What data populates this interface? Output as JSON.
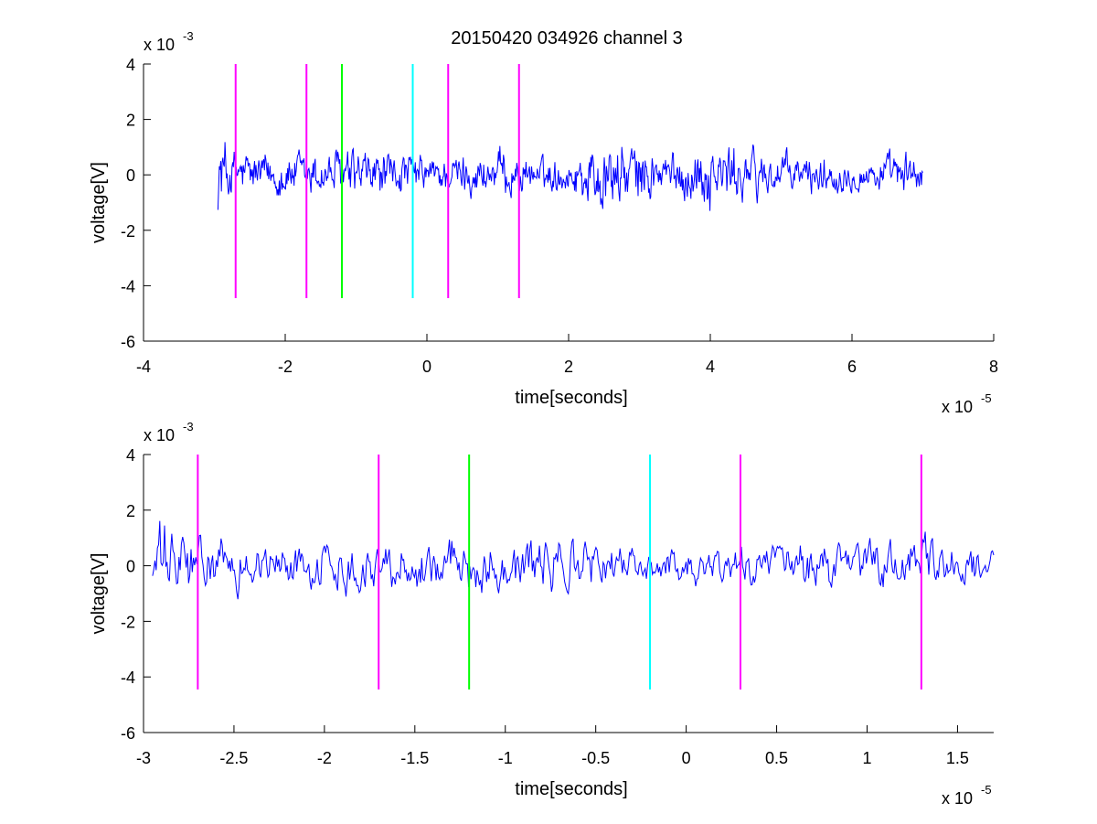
{
  "figure": {
    "title": "20150420 034926 channel 3"
  },
  "chart_data": [
    {
      "type": "line",
      "title": "20150420 034926 channel 3",
      "xlabel": "time[seconds]",
      "ylabel": "voltage[V]",
      "x_multiplier": "x 10",
      "x_exponent": "-5",
      "y_multiplier": "x 10",
      "y_exponent": "-3",
      "xlim": [
        -4,
        8
      ],
      "ylim": [
        -6,
        4
      ],
      "xticks": [
        -4,
        -2,
        0,
        2,
        4,
        6,
        8
      ],
      "xtick_labels": [
        "-4",
        "-2",
        "0",
        "2",
        "4",
        "6",
        "8"
      ],
      "yticks": [
        -6,
        -4,
        -2,
        0,
        2,
        4
      ],
      "ytick_labels": [
        "-6",
        "-4",
        "-2",
        "0",
        "2",
        "4"
      ],
      "grid": false,
      "signal": {
        "color": "#0000ff",
        "x_start": -2.95,
        "x_end": 7.0,
        "samples": 1000,
        "envelope": [
          [
            -2.95,
            2.3
          ],
          [
            -2.9,
            2.6
          ],
          [
            -2.8,
            1.6
          ],
          [
            -2.5,
            1.3
          ],
          [
            -2.0,
            1.3
          ],
          [
            -1.5,
            1.3
          ],
          [
            -1.2,
            1.5
          ],
          [
            -0.5,
            1.3
          ],
          [
            0.0,
            1.0
          ],
          [
            0.5,
            1.1
          ],
          [
            1.0,
            1.4
          ],
          [
            1.5,
            0.9
          ],
          [
            2.0,
            1.0
          ],
          [
            2.5,
            2.2
          ],
          [
            3.0,
            1.7
          ],
          [
            3.5,
            1.2
          ],
          [
            4.0,
            1.9
          ],
          [
            4.5,
            1.6
          ],
          [
            5.0,
            1.2
          ],
          [
            6.0,
            0.9
          ],
          [
            6.5,
            1.0
          ],
          [
            7.0,
            1.3
          ]
        ]
      },
      "markers": [
        {
          "x": -2.7,
          "color": "#ff00ff"
        },
        {
          "x": -1.7,
          "color": "#ff00ff"
        },
        {
          "x": -1.2,
          "color": "#00ff00"
        },
        {
          "x": -0.2,
          "color": "#00ffff"
        },
        {
          "x": 0.3,
          "color": "#ff00ff"
        },
        {
          "x": 1.3,
          "color": "#ff00ff"
        }
      ],
      "marker_range": [
        -4.45,
        4.0
      ]
    },
    {
      "type": "line",
      "xlabel": "time[seconds]",
      "ylabel": "voltage[V]",
      "x_multiplier": "x 10",
      "x_exponent": "-5",
      "y_multiplier": "x 10",
      "y_exponent": "-3",
      "xlim": [
        -3.0,
        1.7
      ],
      "ylim": [
        -6,
        4
      ],
      "xticks": [
        -3,
        -2.5,
        -2,
        -1.5,
        -1,
        -0.5,
        0,
        0.5,
        1,
        1.5
      ],
      "xtick_labels": [
        "-3",
        "-2.5",
        "-2",
        "-1.5",
        "-1",
        "-0.5",
        "0",
        "0.5",
        "1",
        "1.5"
      ],
      "yticks": [
        -6,
        -4,
        -2,
        0,
        2,
        4
      ],
      "ytick_labels": [
        "-6",
        "-4",
        "-2",
        "0",
        "2",
        "4"
      ],
      "grid": false,
      "signal": {
        "color": "#0000ff",
        "x_start": -2.95,
        "x_end": 1.7,
        "samples": 700,
        "envelope": [
          [
            -2.95,
            2.3
          ],
          [
            -2.9,
            2.6
          ],
          [
            -2.8,
            2.0
          ],
          [
            -2.6,
            1.4
          ],
          [
            -2.2,
            1.3
          ],
          [
            -1.8,
            1.4
          ],
          [
            -1.4,
            1.5
          ],
          [
            -1.2,
            1.7
          ],
          [
            -1.0,
            1.4
          ],
          [
            -0.6,
            1.6
          ],
          [
            -0.4,
            1.2
          ],
          [
            -0.2,
            0.9
          ],
          [
            0.2,
            1.2
          ],
          [
            0.6,
            1.4
          ],
          [
            1.0,
            1.2
          ],
          [
            1.3,
            1.6
          ],
          [
            1.7,
            0.8
          ]
        ]
      },
      "markers": [
        {
          "x": -2.7,
          "color": "#ff00ff"
        },
        {
          "x": -1.7,
          "color": "#ff00ff"
        },
        {
          "x": -1.2,
          "color": "#00ff00"
        },
        {
          "x": -0.2,
          "color": "#00ffff"
        },
        {
          "x": 0.3,
          "color": "#ff00ff"
        },
        {
          "x": 1.3,
          "color": "#ff00ff"
        }
      ],
      "marker_range": [
        -4.45,
        4.0
      ]
    }
  ]
}
